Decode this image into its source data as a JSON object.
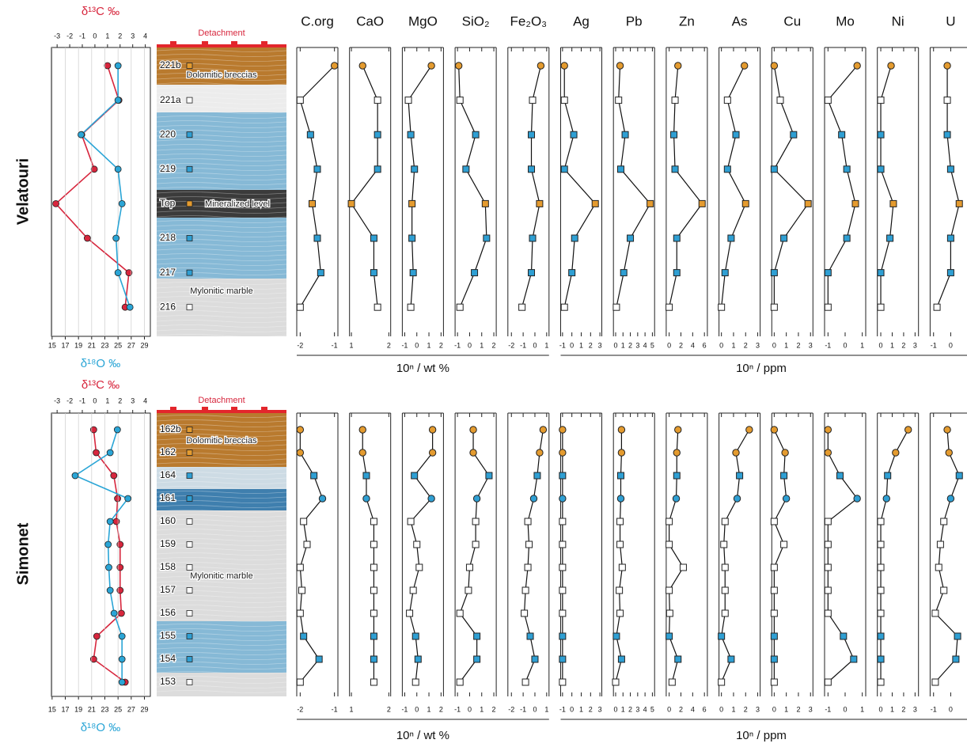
{
  "chart_data": [
    {
      "type": "profile",
      "section": "Velatouri",
      "samples": [
        "221b",
        "221a",
        "220",
        "219",
        "Top",
        "218",
        "217",
        "216"
      ],
      "marker_shapes": [
        "circle",
        "square",
        "square",
        "square",
        "square",
        "square",
        "square",
        "square"
      ],
      "marker_colors": [
        "#e49b2f",
        "#ffffff",
        "#2f9fd3",
        "#2f9fd3",
        "#e49b2f",
        "#2f9fd3",
        "#2f9fd3",
        "#ffffff"
      ],
      "lithology": [
        "Detachment",
        "Dolomitic breccias",
        "Mineralized level",
        "Mylonitic marble"
      ],
      "isotopes": [
        {
          "name": "δ¹³C ‰",
          "color": "#d7263d",
          "xlim": [
            -3.45,
            4.4
          ],
          "xticks": [
            -3,
            -2,
            -1,
            0,
            1,
            2,
            3,
            4
          ],
          "values": [
            1.0,
            1.9,
            -1.05,
            -0.05,
            -3.1,
            -0.6,
            2.7,
            2.4
          ]
        },
        {
          "name": "δ¹⁸O ‰",
          "color": "#2aa5d6",
          "xlim": [
            14.9,
            29.9
          ],
          "xticks": [
            15,
            17,
            19,
            21,
            23,
            25,
            27,
            29
          ],
          "values": [
            25.0,
            25.0,
            19.4,
            25.0,
            25.6,
            24.7,
            25.0,
            26.8
          ]
        }
      ],
      "grid": true,
      "units": [
        "10ⁿ / wt %",
        "10ⁿ / ppm"
      ],
      "elements": [
        {
          "name": "C.org",
          "xlim": [
            -2.1,
            -0.9
          ],
          "xticks": [
            -2,
            -1
          ],
          "values": [
            -1.0,
            -2.0,
            -1.7,
            -1.5,
            -1.65,
            -1.5,
            -1.4,
            -2.0
          ]
        },
        {
          "name": "CaO",
          "xlim": [
            0.95,
            2.05
          ],
          "xticks": [
            1,
            2
          ],
          "values": [
            1.3,
            1.7,
            1.7,
            1.7,
            1.0,
            1.6,
            1.6,
            1.7
          ]
        },
        {
          "name": "MgO",
          "xlim": [
            -1.2,
            2.2
          ],
          "xticks": [
            -1,
            0,
            1,
            2
          ],
          "values": [
            1.2,
            -0.7,
            -0.5,
            -0.2,
            -0.4,
            -0.4,
            -0.3,
            -0.5
          ]
        },
        {
          "name": "SiO₂",
          "xlim": [
            -1.2,
            2.2
          ],
          "xticks": [
            -1,
            0,
            1,
            2
          ],
          "values": [
            -0.9,
            -0.8,
            0.5,
            -0.3,
            1.3,
            1.4,
            0.4,
            -0.8
          ]
        },
        {
          "name": "Fe₂O₃",
          "xlim": [
            -2.3,
            1.2
          ],
          "xticks": [
            -2,
            -1,
            0,
            1
          ],
          "values": [
            0.5,
            -0.2,
            -0.3,
            -0.3,
            0.4,
            -0.2,
            -0.3,
            -1.1
          ]
        },
        {
          "name": "Ag",
          "xlim": [
            -1.2,
            3.2
          ],
          "xticks": [
            -1,
            0,
            1,
            2,
            3
          ],
          "values": [
            -0.8,
            -0.8,
            0.2,
            -0.8,
            2.5,
            0.3,
            0.0,
            -0.8
          ]
        },
        {
          "name": "Pb",
          "xlim": [
            -0.3,
            5.3
          ],
          "xticks": [
            0,
            1,
            2,
            3,
            4,
            5
          ],
          "values": [
            0.6,
            0.4,
            1.3,
            0.7,
            4.7,
            2.0,
            1.1,
            0.1
          ]
        },
        {
          "name": "Zn",
          "xlim": [
            -0.5,
            6.5
          ],
          "xticks": [
            0,
            2,
            4,
            6
          ],
          "values": [
            1.5,
            1.0,
            0.8,
            1.0,
            5.6,
            1.3,
            1.3,
            0.0
          ]
        },
        {
          "name": "As",
          "xlim": [
            -0.2,
            3.2
          ],
          "xticks": [
            0,
            1,
            2,
            3
          ],
          "values": [
            1.9,
            0.5,
            1.2,
            0.5,
            2.0,
            0.8,
            0.3,
            0.0
          ]
        },
        {
          "name": "Cu",
          "xlim": [
            -0.2,
            3.2
          ],
          "xticks": [
            0,
            1,
            2,
            3
          ],
          "values": [
            0.0,
            0.5,
            1.6,
            0.0,
            2.8,
            0.8,
            0.0,
            0.0
          ]
        },
        {
          "name": "Mo",
          "xlim": [
            -1.2,
            1.2
          ],
          "xticks": [
            -1,
            0,
            1
          ],
          "values": [
            0.7,
            -1.0,
            -0.2,
            0.1,
            0.6,
            0.1,
            -1.0,
            -1.0
          ]
        },
        {
          "name": "Ni",
          "xlim": [
            -0.3,
            3.3
          ],
          "xticks": [
            0,
            1,
            2,
            3
          ],
          "values": [
            0.9,
            0.0,
            0.0,
            0.0,
            1.1,
            0.8,
            0.0,
            0.0
          ]
        },
        {
          "name": "U",
          "xlim": [
            -1.2,
            1.2
          ],
          "xticks": [
            -1,
            0
          ],
          "values": [
            -0.2,
            -0.2,
            -0.2,
            0.0,
            0.5,
            0.0,
            0.0,
            -0.8
          ]
        }
      ]
    },
    {
      "type": "profile",
      "section": "Simonet",
      "samples": [
        "162b",
        "162",
        "164",
        "161",
        "160",
        "159",
        "158",
        "157",
        "156",
        "155",
        "154",
        "153"
      ],
      "marker_shapes": [
        "circle",
        "circle",
        "square",
        "circle",
        "square",
        "square",
        "square",
        "square",
        "square",
        "square",
        "square",
        "square"
      ],
      "marker_colors": [
        "#e49b2f",
        "#e49b2f",
        "#2f9fd3",
        "#2f9fd3",
        "#ffffff",
        "#ffffff",
        "#ffffff",
        "#ffffff",
        "#ffffff",
        "#2f9fd3",
        "#2f9fd3",
        "#ffffff"
      ],
      "lithology": [
        "Detachment",
        "Dolomitic breccias",
        "Mylonitic marble"
      ],
      "isotopes": [
        {
          "name": "δ¹³C ‰",
          "color": "#d7263d",
          "xlim": [
            -3.45,
            4.4
          ],
          "xticks": [
            -3,
            -2,
            -1,
            0,
            1,
            2,
            3,
            4
          ],
          "values": [
            -0.1,
            0.1,
            1.5,
            1.8,
            1.7,
            2.0,
            2.0,
            2.0,
            2.1,
            0.15,
            -0.1,
            2.4
          ]
        },
        {
          "name": "δ¹⁸O ‰",
          "color": "#2aa5d6",
          "xlim": [
            14.9,
            29.9
          ],
          "xticks": [
            15,
            17,
            19,
            21,
            23,
            25,
            27,
            29
          ],
          "values": [
            24.9,
            23.8,
            18.5,
            26.5,
            23.8,
            23.5,
            23.6,
            23.8,
            24.4,
            25.6,
            25.6,
            25.6
          ]
        }
      ],
      "grid": true,
      "units": [
        "10ⁿ / wt %",
        "10ⁿ / ppm"
      ],
      "elements": [
        {
          "xlim": [
            -2.1,
            -0.9
          ],
          "xticks": [
            -2,
            -1
          ],
          "values": [
            -2.0,
            -2.0,
            -1.6,
            -1.35,
            -1.9,
            -1.8,
            -2.0,
            -1.95,
            -2.0,
            -1.9,
            -1.45,
            -2.0
          ]
        },
        {
          "xlim": [
            0.95,
            2.05
          ],
          "xticks": [
            1,
            2
          ],
          "values": [
            1.3,
            1.3,
            1.4,
            1.4,
            1.6,
            1.6,
            1.6,
            1.6,
            1.6,
            1.6,
            1.6,
            1.6
          ]
        },
        {
          "xlim": [
            -1.2,
            2.2
          ],
          "xticks": [
            -1,
            0,
            1,
            2
          ],
          "values": [
            1.3,
            1.3,
            -0.2,
            1.2,
            -0.5,
            0.0,
            0.2,
            -0.3,
            -0.6,
            -0.1,
            0.1,
            -0.1
          ]
        },
        {
          "xlim": [
            -1.2,
            2.2
          ],
          "xticks": [
            -1,
            0,
            1,
            2
          ],
          "values": [
            0.3,
            0.3,
            1.6,
            0.6,
            0.5,
            0.5,
            0.0,
            -0.1,
            -0.8,
            0.6,
            0.6,
            -0.8
          ]
        },
        {
          "xlim": [
            -2.3,
            1.2
          ],
          "xticks": [
            -2,
            -1,
            0,
            1
          ],
          "values": [
            0.7,
            0.4,
            0.2,
            -0.1,
            -0.6,
            -0.5,
            -0.6,
            -0.8,
            -0.9,
            -0.4,
            0.0,
            -0.8
          ]
        },
        {
          "xlim": [
            -1.2,
            3.2
          ],
          "xticks": [
            -1,
            0,
            1,
            2,
            3
          ],
          "values": [
            -1.0,
            -1.0,
            -1.0,
            -1.0,
            -1.0,
            -1.0,
            -1.0,
            -1.0,
            -1.0,
            -1.0,
            -1.0,
            -1.0
          ]
        },
        {
          "xlim": [
            -0.3,
            5.3
          ],
          "xticks": [
            0,
            1,
            2,
            3,
            4,
            5
          ],
          "values": [
            0.8,
            0.8,
            0.7,
            0.7,
            0.6,
            0.6,
            0.9,
            0.5,
            0.6,
            0.1,
            0.8,
            0.0
          ]
        },
        {
          "xlim": [
            -0.5,
            6.5
          ],
          "xticks": [
            0,
            2,
            4,
            6
          ],
          "values": [
            1.5,
            1.3,
            1.3,
            1.2,
            0.0,
            0.0,
            2.4,
            0.0,
            0.1,
            0.0,
            1.5,
            0.5
          ]
        },
        {
          "xlim": [
            -0.2,
            3.2
          ],
          "xticks": [
            0,
            1,
            2,
            3
          ],
          "values": [
            2.3,
            1.2,
            1.5,
            1.3,
            0.3,
            0.2,
            0.3,
            0.3,
            0.3,
            0.0,
            0.8,
            0.0
          ]
        },
        {
          "xlim": [
            -0.2,
            3.2
          ],
          "xticks": [
            0,
            1,
            2,
            3
          ],
          "values": [
            0.0,
            0.9,
            0.8,
            1.0,
            0.0,
            0.8,
            0.0,
            0.0,
            0.0,
            0.0,
            0.0,
            0.0
          ]
        },
        {
          "xlim": [
            -1.2,
            1.2
          ],
          "xticks": [
            -1,
            0,
            1
          ],
          "values": [
            -1.0,
            -1.0,
            -0.3,
            0.7,
            -1.0,
            -1.0,
            -1.0,
            -1.0,
            -1.0,
            -0.1,
            0.5,
            -1.0
          ]
        },
        {
          "xlim": [
            -0.3,
            3.3
          ],
          "xticks": [
            0,
            1,
            2,
            3
          ],
          "values": [
            2.4,
            1.3,
            0.6,
            0.5,
            0.0,
            0.0,
            0.0,
            0.0,
            0.0,
            0.0,
            0.0,
            0.0
          ]
        },
        {
          "xlim": [
            -1.2,
            1.2
          ],
          "xticks": [
            -1,
            0
          ],
          "values": [
            -0.2,
            -0.1,
            0.5,
            0.0,
            -0.4,
            -0.6,
            -0.7,
            -0.4,
            -0.9,
            0.4,
            0.3,
            -0.9
          ]
        }
      ]
    }
  ]
}
